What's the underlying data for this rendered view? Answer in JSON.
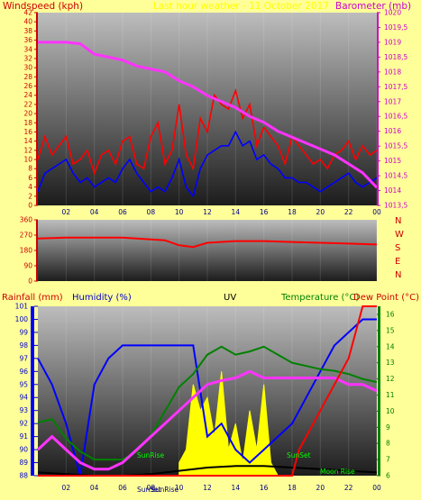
{
  "header": {
    "windspeed_title": "Windspeed (kph)",
    "center_title": "Last hour weather - 11 October 2017",
    "barometer_title": "Barometer (mb)"
  },
  "lower_header": {
    "rainfall_title": "Rainfall (mm)",
    "humidity_title": "Humidity (%)",
    "uv_title": "UV",
    "temperature_title": "Temperature (°C)",
    "dewpoint_title": "Dew Point (°C)"
  },
  "colors": {
    "page_bg": "#ffff99",
    "wind_gust": "#ff0000",
    "wind_avg": "#0000ff",
    "barometer": "#ff33ff",
    "temperature": "#008000",
    "dewpoint": "#000000",
    "humidity": "#0000ff",
    "rainfall": "#ff0000",
    "uv": "#ffff00",
    "labels_red": "#cc0000",
    "labels_green": "#008000"
  },
  "chart_data": [
    {
      "type": "line",
      "title": "Windspeed (kph) / Barometer (mb)",
      "x_ticks": [
        "02",
        "04",
        "06",
        "08",
        "10",
        "12",
        "14",
        "16",
        "18",
        "20",
        "22",
        "00"
      ],
      "xlim_hours": [
        0,
        24
      ],
      "y_left": {
        "label": "Windspeed (kph)",
        "range": [
          0,
          42
        ],
        "ticks": [
          "0",
          "2",
          "4",
          "6",
          "8",
          "10",
          "12",
          "14",
          "16",
          "18",
          "20",
          "22",
          "24",
          "26",
          "28",
          "30",
          "32",
          "34",
          "36",
          "38",
          "40",
          "42"
        ]
      },
      "y_right": {
        "label": "Barometer (mb)",
        "range": [
          1013.5,
          1020
        ],
        "ticks": [
          "1013,5",
          "1014",
          "1014,5",
          "1015",
          "1015,5",
          "1016",
          "1016,5",
          "1017",
          "1017,5",
          "1018",
          "1018,5",
          "1019",
          "1019,5",
          "1020"
        ]
      },
      "series": [
        {
          "name": "gust",
          "color": "#ff0000",
          "x": [
            0,
            0.5,
            1,
            1.5,
            2,
            2.5,
            3,
            3.5,
            4,
            4.5,
            5,
            5.5,
            6,
            6.5,
            7,
            7.5,
            8,
            8.5,
            9,
            9.5,
            10,
            10.5,
            11,
            11.5,
            12,
            12.5,
            13,
            13.5,
            14,
            14.5,
            15,
            15.5,
            16,
            16.5,
            17,
            17.5,
            18,
            18.5,
            19,
            19.5,
            20,
            20.5,
            21,
            21.5,
            22,
            22.5,
            23,
            23.5,
            24
          ],
          "values": [
            10,
            15,
            11,
            13,
            15,
            9,
            10,
            12,
            7,
            11,
            12,
            9,
            14,
            15,
            9,
            8,
            15,
            18,
            9,
            12,
            22,
            11,
            8,
            19,
            16,
            24,
            22,
            21,
            25,
            19,
            22,
            13,
            17,
            15,
            13,
            9,
            15,
            13,
            11,
            9,
            10,
            8,
            11,
            12,
            14,
            10,
            13,
            11,
            12
          ]
        },
        {
          "name": "average",
          "color": "#0000ff",
          "x": [
            0,
            0.5,
            1,
            1.5,
            2,
            2.5,
            3,
            3.5,
            4,
            4.5,
            5,
            5.5,
            6,
            6.5,
            7,
            7.5,
            8,
            8.5,
            9,
            9.5,
            10,
            10.5,
            11,
            11.5,
            12,
            12.5,
            13,
            13.5,
            14,
            14.5,
            15,
            15.5,
            16,
            16.5,
            17,
            17.5,
            18,
            18.5,
            19,
            19.5,
            20,
            20.5,
            21,
            21.5,
            22,
            22.5,
            23,
            23.5,
            24
          ],
          "values": [
            3,
            7,
            8,
            9,
            10,
            7,
            5,
            6,
            4,
            5,
            6,
            5,
            8,
            10,
            7,
            5,
            3,
            4,
            3,
            6,
            10,
            4,
            2,
            8,
            11,
            12,
            13,
            13,
            16,
            13,
            14,
            10,
            11,
            9,
            8,
            6,
            6,
            5,
            5,
            4,
            3,
            4,
            5,
            6,
            7,
            5,
            4,
            5,
            6
          ]
        },
        {
          "name": "barometer",
          "color": "#ff33ff",
          "axis": "right",
          "x": [
            0,
            1,
            2,
            3,
            4,
            5,
            6,
            7,
            8,
            9,
            10,
            11,
            12,
            13,
            14,
            15,
            16,
            17,
            18,
            19,
            20,
            21,
            22,
            23,
            24
          ],
          "values": [
            1019,
            1019,
            1019,
            1018.95,
            1018.6,
            1018.5,
            1018.4,
            1018.2,
            1018.1,
            1018,
            1017.7,
            1017.5,
            1017.2,
            1017,
            1016.8,
            1016.5,
            1016.3,
            1016,
            1015.8,
            1015.6,
            1015.4,
            1015.2,
            1014.9,
            1014.6,
            1014.1
          ]
        }
      ]
    },
    {
      "type": "line",
      "title": "Wind direction",
      "x_ticks": [
        "02",
        "04",
        "06",
        "08",
        "10",
        "12",
        "14",
        "16",
        "18",
        "20",
        "22",
        "00"
      ],
      "xlim_hours": [
        0,
        24
      ],
      "y_left": {
        "range": [
          0,
          360
        ],
        "ticks": [
          "0",
          "90",
          "180",
          "270",
          "360"
        ]
      },
      "y_right_labels": [
        "N",
        "W",
        "S",
        "E",
        "N"
      ],
      "series": [
        {
          "name": "direction",
          "color": "#ff0000",
          "x": [
            0,
            2,
            4,
            6,
            8,
            9,
            10,
            11,
            12,
            14,
            16,
            18,
            20,
            22,
            24
          ],
          "values": [
            250,
            255,
            255,
            255,
            245,
            240,
            210,
            200,
            225,
            235,
            235,
            230,
            225,
            220,
            215
          ]
        }
      ]
    },
    {
      "type": "line",
      "title": "Rainfall / Humidity / UV / Temperature / Dew Point",
      "x_ticks": [
        "02",
        "04",
        "06",
        "08",
        "10",
        "12",
        "14",
        "16",
        "18",
        "20",
        "22",
        "00"
      ],
      "xlim_hours": [
        0,
        24
      ],
      "y_left": {
        "label": "Humidity (%)",
        "range": [
          88,
          101
        ],
        "ticks": [
          "88",
          "89",
          "90",
          "91",
          "92",
          "93",
          "94",
          "95",
          "96",
          "97",
          "98",
          "99",
          "100",
          "101"
        ]
      },
      "y_right": {
        "label": "Temperature (°C)",
        "range": [
          6,
          16.5
        ],
        "ticks": [
          "6",
          "7",
          "8",
          "9",
          "10",
          "11",
          "12",
          "13",
          "14",
          "15",
          "16"
        ]
      },
      "annotations": [
        "SunRise",
        "SunSet",
        "Moon Rise"
      ],
      "bottom_markers": [
        "SunSet",
        "SunRise"
      ],
      "series": [
        {
          "name": "humidity",
          "color": "#0000ff",
          "x": [
            0,
            1,
            2,
            3,
            4,
            5,
            6,
            7,
            8,
            9,
            10,
            11,
            12,
            13,
            14,
            15,
            16,
            17,
            18,
            19,
            20,
            21,
            22,
            23,
            24
          ],
          "values": [
            97,
            95,
            92,
            88,
            95,
            97,
            98,
            98,
            98,
            98,
            98,
            98,
            91,
            92,
            90,
            89,
            90,
            91,
            92,
            94,
            96,
            98,
            99,
            100,
            100
          ]
        },
        {
          "name": "temperature",
          "color": "#008000",
          "axis": "right",
          "x": [
            0,
            1,
            2,
            3,
            4,
            5,
            6,
            7,
            8,
            9,
            10,
            11,
            12,
            13,
            14,
            15,
            16,
            17,
            18,
            19,
            20,
            21,
            22,
            23,
            24
          ],
          "values": [
            9.3,
            9.5,
            8.3,
            7.5,
            7,
            7,
            7,
            7.5,
            8.5,
            10,
            11.5,
            12.3,
            13.5,
            14,
            13.5,
            13.7,
            14,
            13.5,
            13,
            12.8,
            12.6,
            12.5,
            12.3,
            12,
            11.8
          ]
        },
        {
          "name": "dewpoint",
          "color": "#000000",
          "axis": "right",
          "x": [
            0,
            2,
            4,
            6,
            8,
            10,
            12,
            14,
            16,
            18,
            20,
            22,
            24
          ],
          "values": [
            6.2,
            6.1,
            6,
            6,
            6.1,
            6.3,
            6.5,
            6.6,
            6.6,
            6.5,
            6.4,
            6.3,
            6.2
          ]
        },
        {
          "name": "humidity_pink",
          "color": "#ff33ff",
          "x": [
            0,
            1,
            2,
            3,
            4,
            5,
            6,
            7,
            8,
            9,
            10,
            11,
            12,
            13,
            14,
            15,
            16,
            17,
            18,
            19,
            20,
            21,
            22,
            23,
            24
          ],
          "values": [
            90,
            91,
            90,
            89,
            88.5,
            88.5,
            89,
            90,
            91,
            92,
            93,
            94,
            95,
            95.3,
            95.5,
            96,
            95.5,
            95.5,
            95.5,
            95.5,
            95.5,
            95.5,
            95,
            95,
            94.5
          ]
        },
        {
          "name": "rainfall",
          "color": "#ff0000",
          "x": [
            0,
            18,
            18.5,
            19.5,
            20.5,
            21.5,
            22,
            22.5,
            23,
            24
          ],
          "values": [
            88,
            88,
            90,
            92,
            94,
            96,
            97,
            99,
            101,
            101
          ]
        }
      ]
    }
  ]
}
